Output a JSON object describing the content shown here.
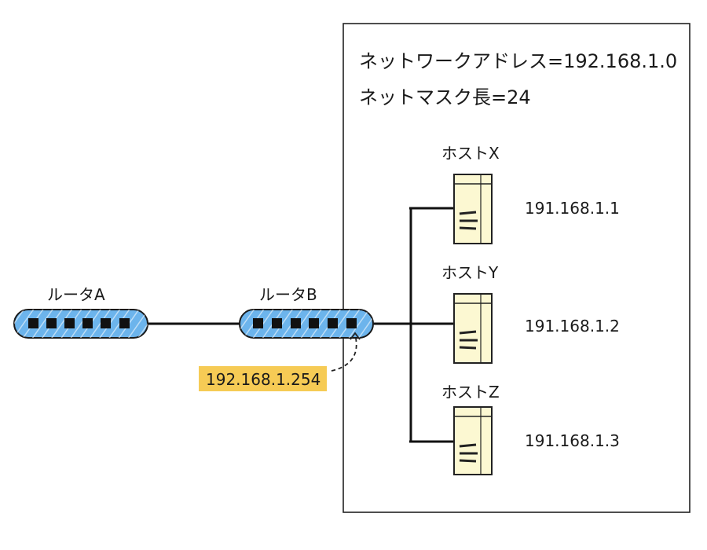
{
  "network": {
    "address_line": "ネットワークアドレス=192.168.1.0",
    "mask_line": "ネットマスク長=24"
  },
  "routers": [
    {
      "label": "ルータA"
    },
    {
      "label": "ルータB"
    }
  ],
  "gateway": {
    "ip": "192.168.1.254"
  },
  "hosts": [
    {
      "label": "ホストX",
      "ip": "191.168.1.1"
    },
    {
      "label": "ホストY",
      "ip": "191.168.1.2"
    },
    {
      "label": "ホストZ",
      "ip": "191.168.1.3"
    }
  ],
  "colors": {
    "router_fill": "#6cb4ec",
    "router_stroke": "#1a1a1a",
    "host_fill": "#fcf8d2",
    "gateway_highlight": "#f5c542",
    "line": "#111111"
  }
}
